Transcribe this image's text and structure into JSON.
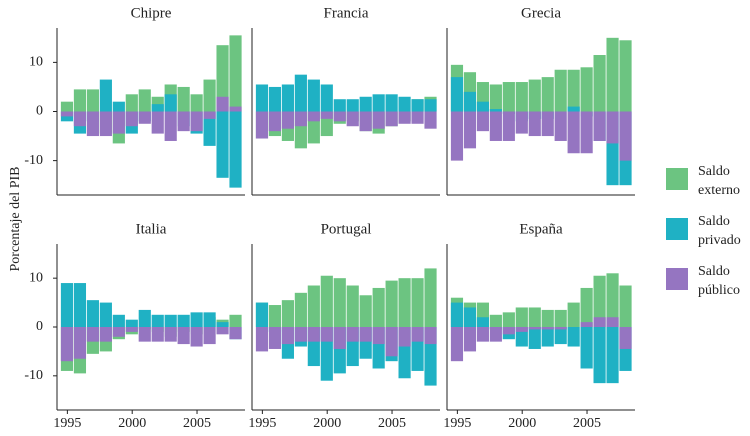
{
  "chart_data": [
    {
      "type": "bar",
      "title": "Chipre",
      "y_label": "Porcentaje del PIB",
      "x": [
        1995,
        1996,
        1997,
        1998,
        1999,
        2000,
        2001,
        2002,
        2003,
        2004,
        2005,
        2006,
        2007,
        2008
      ],
      "xlim": [
        1994.2,
        2008.7
      ],
      "ylim": [
        -17,
        17
      ],
      "yticks": [
        -10,
        0,
        10
      ],
      "series": [
        {
          "name": "Saldo externo",
          "color": "#6cc481",
          "values": [
            2,
            4.5,
            4.5,
            -4.5,
            -6.5,
            3.5,
            4.5,
            3,
            5.5,
            5,
            3.5,
            6.5,
            13.5,
            15.5
          ]
        },
        {
          "name": "Saldo privado",
          "color": "#1fb1c4",
          "values": [
            -2,
            -4.5,
            -2,
            6.5,
            2,
            -4.5,
            -2,
            1.5,
            3.5,
            -3,
            -4.5,
            -7,
            -13.5,
            -15.5
          ]
        },
        {
          "name": "Saldo público",
          "color": "#9575c1",
          "values": [
            -1,
            -3,
            -5,
            -5,
            -4.5,
            -3,
            -2.5,
            -4.5,
            -6,
            -4,
            -4,
            -1.5,
            3,
            1
          ]
        }
      ]
    },
    {
      "type": "bar",
      "title": "Francia",
      "x": [
        1995,
        1996,
        1997,
        1998,
        1999,
        2000,
        2001,
        2002,
        2003,
        2004,
        2005,
        2006,
        2007,
        2008
      ],
      "xlim": [
        1994.2,
        2008.7
      ],
      "ylim": [
        -17,
        17
      ],
      "series": [
        {
          "name": "Saldo externo",
          "color": "#6cc481",
          "values": [
            -5.5,
            -5,
            -6,
            -7.5,
            -6.5,
            -5,
            -2.5,
            -2,
            -4,
            -4.5,
            -3,
            -2,
            2.5,
            3
          ]
        },
        {
          "name": "Saldo privado",
          "color": "#1fb1c4",
          "values": [
            5.5,
            5,
            5.5,
            7.5,
            6.5,
            5.5,
            2.5,
            2.5,
            3,
            3.5,
            3.5,
            3,
            2.5,
            2.5
          ]
        },
        {
          "name": "Saldo público",
          "color": "#9575c1",
          "values": [
            -5.5,
            -4,
            -3.5,
            -3,
            -2,
            -1.5,
            -2,
            -3,
            -4,
            -3.5,
            -3,
            -2.5,
            -2.5,
            -3.5
          ]
        }
      ]
    },
    {
      "type": "bar",
      "title": "Grecia",
      "x": [
        1995,
        1996,
        1997,
        1998,
        1999,
        2000,
        2001,
        2002,
        2003,
        2004,
        2005,
        2006,
        2007,
        2008
      ],
      "xlim": [
        1994.2,
        2008.7
      ],
      "ylim": [
        -17,
        17
      ],
      "series": [
        {
          "name": "Saldo externo",
          "color": "#6cc481",
          "values": [
            9.5,
            8,
            6,
            5.5,
            6,
            6,
            6.5,
            7,
            8.5,
            8.5,
            9,
            11.5,
            15,
            14.5
          ]
        },
        {
          "name": "Saldo privado",
          "color": "#1fb1c4",
          "values": [
            7,
            4,
            2,
            0.5,
            -0.5,
            -2,
            -1.5,
            -1.5,
            0,
            1,
            -1,
            -6,
            -15,
            -15
          ]
        },
        {
          "name": "Saldo público",
          "color": "#9575c1",
          "values": [
            -10,
            -7.5,
            -4,
            -6,
            -6,
            -4.5,
            -5,
            -5,
            -6,
            -8.5,
            -8.5,
            -6,
            -6.5,
            -10
          ]
        }
      ]
    },
    {
      "type": "bar",
      "title": "Italia",
      "x": [
        1995,
        1996,
        1997,
        1998,
        1999,
        2000,
        2001,
        2002,
        2003,
        2004,
        2005,
        2006,
        2007,
        2008
      ],
      "xlim": [
        1994.2,
        2008.7
      ],
      "ylim": [
        -17,
        17
      ],
      "yticks": [
        -10,
        0,
        10
      ],
      "xticks": [
        1995,
        2000,
        2005
      ],
      "series": [
        {
          "name": "Saldo externo",
          "color": "#6cc481",
          "values": [
            -9,
            -9.5,
            -5.5,
            -5,
            -2.5,
            -1.5,
            -0.5,
            -1,
            -2,
            -1,
            -1.5,
            2,
            1.5,
            2.5
          ]
        },
        {
          "name": "Saldo privado",
          "color": "#1fb1c4",
          "values": [
            9,
            9,
            5.5,
            5,
            2.5,
            1.5,
            3.5,
            2.5,
            2.5,
            2.5,
            3,
            3,
            1,
            -2.5
          ]
        },
        {
          "name": "Saldo público",
          "color": "#9575c1",
          "values": [
            -7,
            -6.5,
            -3,
            -3,
            -2,
            -1,
            -3,
            -3,
            -3,
            -3.5,
            -4,
            -3.5,
            -1.5,
            -2.5
          ]
        }
      ]
    },
    {
      "type": "bar",
      "title": "Portugal",
      "x": [
        1995,
        1996,
        1997,
        1998,
        1999,
        2000,
        2001,
        2002,
        2003,
        2004,
        2005,
        2006,
        2007,
        2008
      ],
      "xlim": [
        1994.2,
        2008.7
      ],
      "ylim": [
        -17,
        17
      ],
      "xticks": [
        1995,
        2000,
        2005
      ],
      "series": [
        {
          "name": "Saldo externo",
          "color": "#6cc481",
          "values": [
            5,
            4.5,
            5.5,
            7,
            8.5,
            10.5,
            10,
            8.5,
            6.5,
            8,
            9.5,
            10,
            10,
            12
          ]
        },
        {
          "name": "Saldo privado",
          "color": "#1fb1c4",
          "values": [
            5,
            -1,
            -6.5,
            -4,
            -8,
            -11,
            -9.5,
            -8,
            -6.5,
            -8.5,
            -7,
            -10.5,
            -9,
            -12
          ]
        },
        {
          "name": "Saldo público",
          "color": "#9575c1",
          "values": [
            -5,
            -4.5,
            -3.5,
            -3,
            -3,
            -3,
            -4.5,
            -3,
            -3,
            -3.5,
            -6,
            -4,
            -3,
            -3.5
          ]
        }
      ]
    },
    {
      "type": "bar",
      "title": "España",
      "x": [
        1995,
        1996,
        1997,
        1998,
        1999,
        2000,
        2001,
        2002,
        2003,
        2004,
        2005,
        2006,
        2007,
        2008
      ],
      "xlim": [
        1994.2,
        2008.7
      ],
      "ylim": [
        -17,
        17
      ],
      "xticks": [
        1995,
        2000,
        2005
      ],
      "series": [
        {
          "name": "Saldo externo",
          "color": "#6cc481",
          "values": [
            6,
            5,
            5,
            2.5,
            3,
            4,
            4,
            3.5,
            3.5,
            5,
            8,
            10.5,
            11,
            8.5
          ]
        },
        {
          "name": "Saldo privado",
          "color": "#1fb1c4",
          "values": [
            5,
            4,
            2,
            -0.5,
            -2.5,
            -4,
            -4.5,
            -4,
            -3.5,
            -4,
            -8.5,
            -11.5,
            -11.5,
            -9
          ]
        },
        {
          "name": "Saldo público",
          "color": "#9575c1",
          "values": [
            -7,
            -5,
            -3,
            -3,
            -1.5,
            -1,
            -0.5,
            -0.5,
            -0.5,
            0,
            1,
            2,
            2,
            -4.5
          ]
        }
      ]
    }
  ]
}
